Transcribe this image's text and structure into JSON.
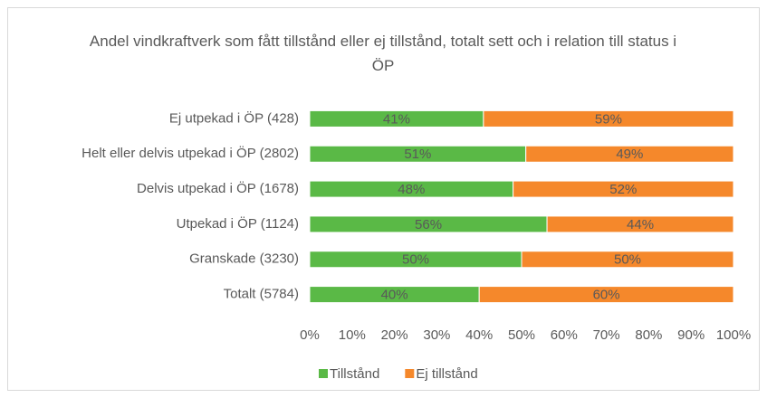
{
  "chart_data": {
    "type": "stacked_barh",
    "title": "Andel vindkraftverk som fått tillstånd eller ej tillstånd, totalt sett och i relation till status i ÖP",
    "categories": [
      "Ej utpekad i ÖP (428)",
      "Helt eller delvis utpekad i ÖP (2802)",
      "Delvis utpekad i ÖP (1678)",
      "Utpekad i ÖP (1124)",
      "Granskade (3230)",
      "Totalt (5784)"
    ],
    "series": [
      {
        "name": "Tillstånd",
        "color": "#5ab946",
        "values": [
          41,
          51,
          48,
          56,
          50,
          40
        ],
        "value_labels": [
          "41%",
          "51%",
          "48%",
          "56%",
          "50%",
          "40%"
        ]
      },
      {
        "name": "Ej tillstånd",
        "color": "#f5882b",
        "values": [
          59,
          49,
          52,
          44,
          50,
          60
        ],
        "value_labels": [
          "59%",
          "49%",
          "52%",
          "44%",
          "50%",
          "60%"
        ]
      }
    ],
    "xlim": [
      0,
      100
    ],
    "xticks": [
      {
        "value": 0,
        "label": "0%"
      },
      {
        "value": 10,
        "label": "10%"
      },
      {
        "value": 20,
        "label": "20%"
      },
      {
        "value": 30,
        "label": "30%"
      },
      {
        "value": 40,
        "label": "40%"
      },
      {
        "value": 50,
        "label": "50%"
      },
      {
        "value": 60,
        "label": "60%"
      },
      {
        "value": 70,
        "label": "70%"
      },
      {
        "value": 80,
        "label": "80%"
      },
      {
        "value": 90,
        "label": "90%"
      },
      {
        "value": 100,
        "label": "100%"
      }
    ],
    "legend": "bottom"
  }
}
